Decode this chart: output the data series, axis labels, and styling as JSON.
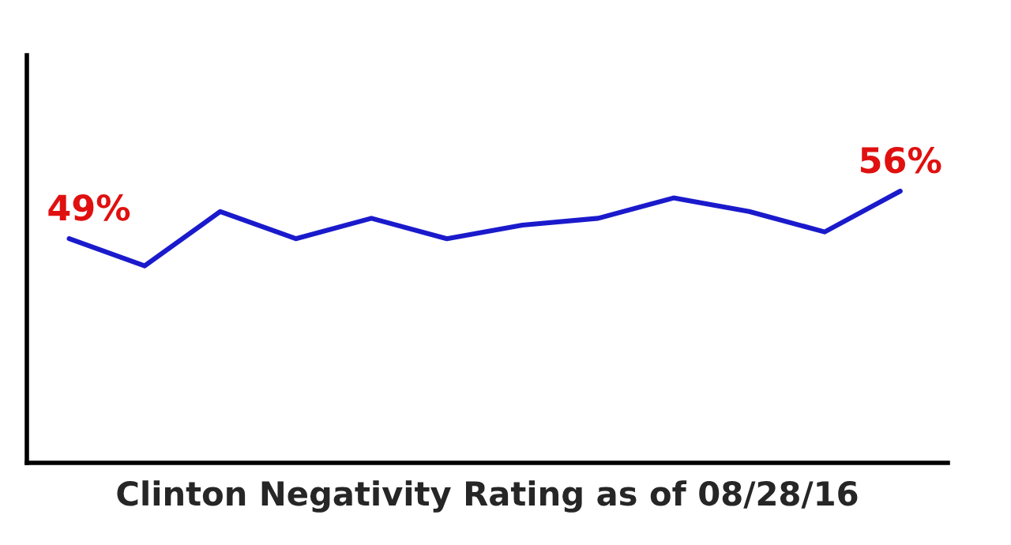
{
  "chart_data": {
    "type": "line",
    "xlabel": "Clinton Negativity Rating as of 08/28/16",
    "categories": [
      null,
      null,
      null,
      null,
      null,
      null,
      null,
      null,
      null,
      null,
      null,
      null
    ],
    "series": [
      {
        "color": "#1a1acc",
        "values": [
          49,
          45,
          53,
          49,
          52,
          49,
          51,
          52,
          55,
          53,
          50,
          56
        ],
        "value_labels": [
          "49%",
          null,
          null,
          null,
          null,
          null,
          null,
          null,
          null,
          null,
          null,
          "56%"
        ]
      }
    ],
    "ylim": [
      16,
      76
    ],
    "tick_labels": false,
    "legend": false,
    "marker": "none",
    "line_style": "solid"
  }
}
